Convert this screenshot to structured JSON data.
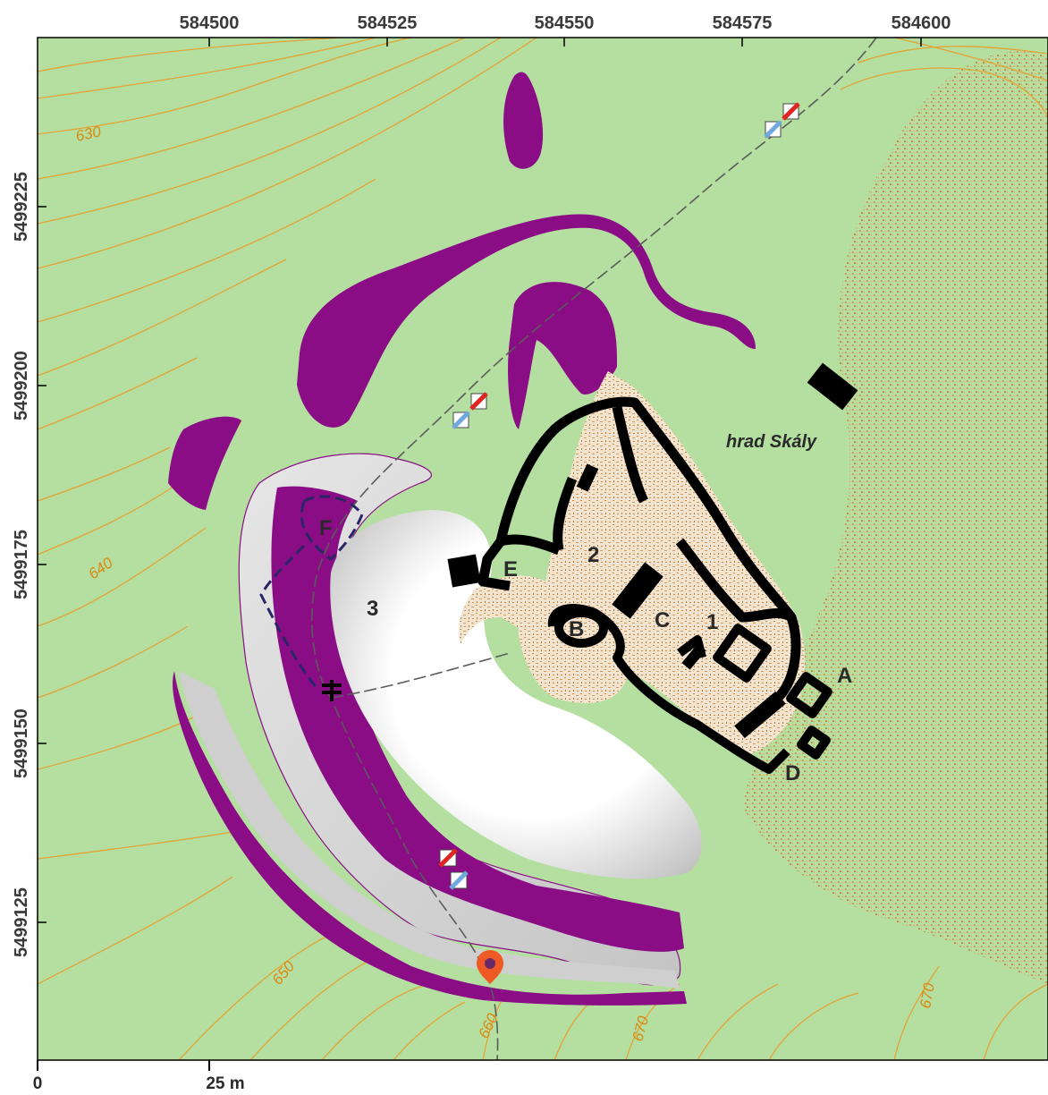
{
  "coords": {
    "x": [
      "584500",
      "584525",
      "584550",
      "584575",
      "584600"
    ],
    "y": [
      "5499225",
      "5499200",
      "5499175",
      "5499150",
      "5499125"
    ]
  },
  "contours": [
    "630",
    "640",
    "650",
    "660",
    "670",
    "670"
  ],
  "areas": {
    "one": "1",
    "two": "2",
    "three": "3",
    "a": "A",
    "b": "B",
    "c": "C",
    "d": "D",
    "e": "E",
    "f": "F"
  },
  "castle_name": "hrad Skály",
  "scale": {
    "start": "0",
    "end": "25 m"
  },
  "colors": {
    "terrain": "#b5dfa0",
    "contour": "#e3a336",
    "rock": "#8a0d86",
    "walls": "#000000",
    "ruin_fill": "#f2e2cc",
    "ruin_speckle": "#c98a4a",
    "path": "#5b5b5b",
    "marker_red": "#e1241f",
    "marker_blue": "#6fa8dc",
    "location_pin": "#ef5a24"
  },
  "icons": [
    "trail-marker-icon",
    "location-pin-icon",
    "cross-icon"
  ]
}
